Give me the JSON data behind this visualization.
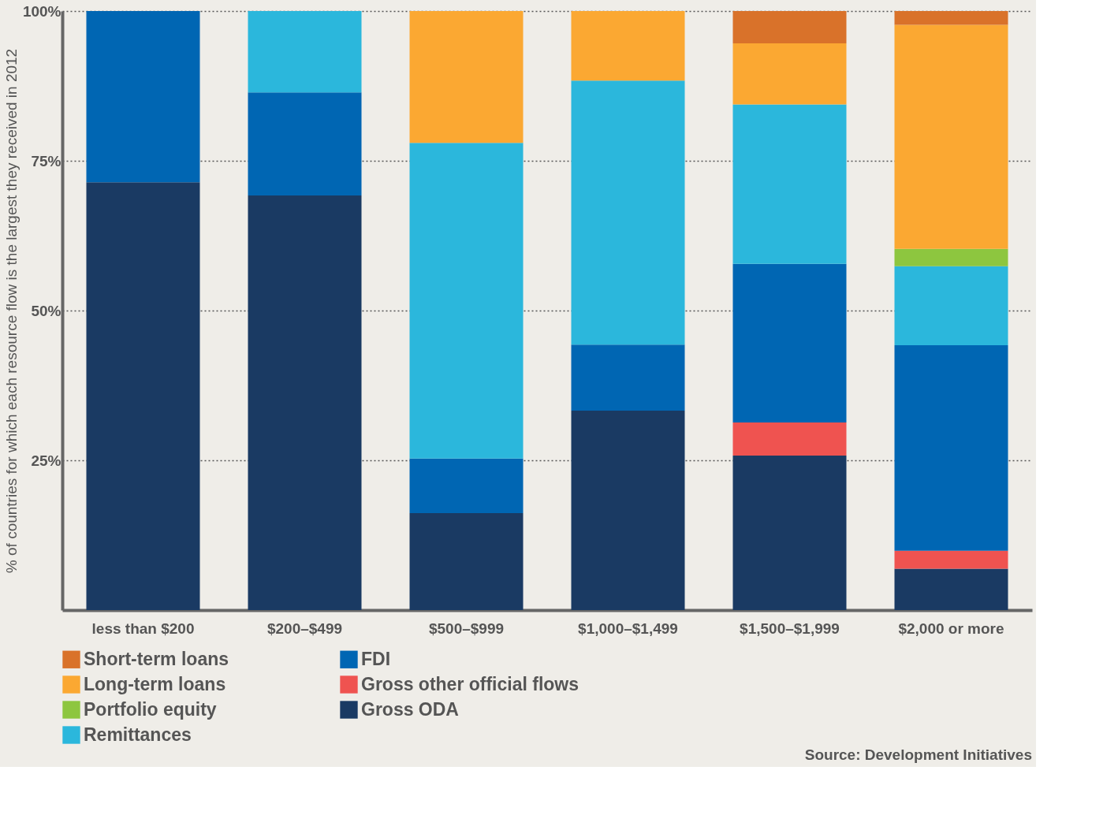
{
  "chart_data": {
    "type": "bar",
    "stacked": true,
    "ylabel": "% of countries for which each resource flow is the largest they received in 2012",
    "categories": [
      "less than $200",
      "$200–$499",
      "$500–$999",
      "$1,000–$1,499",
      "$1,500–$1,999",
      "$2,000 or more"
    ],
    "series": [
      {
        "name": "Gross ODA",
        "color": "#1a3a63",
        "values": [
          71.4,
          69.2,
          16.2,
          33.3,
          25.8,
          6.9
        ]
      },
      {
        "name": "Gross other official flows",
        "color": "#ef5350",
        "values": [
          null,
          null,
          null,
          null,
          5.5,
          3.0
        ]
      },
      {
        "name": "FDI",
        "color": "#0066b3",
        "values": [
          28.6,
          17.2,
          9.1,
          11.0,
          26.5,
          34.3
        ]
      },
      {
        "name": "Remittances",
        "color": "#2bb7dc",
        "values": [
          null,
          13.6,
          52.7,
          44.1,
          26.6,
          13.2
        ]
      },
      {
        "name": "Portfolio equity",
        "color": "#8dc63f",
        "values": [
          null,
          null,
          null,
          null,
          null,
          2.9
        ]
      },
      {
        "name": "Long-term loans",
        "color": "#fba832",
        "values": [
          null,
          null,
          22.0,
          11.6,
          10.2,
          37.4
        ]
      },
      {
        "name": "Short-term loans",
        "color": "#d9722a",
        "values": [
          null,
          null,
          null,
          null,
          5.4,
          2.3
        ]
      }
    ],
    "ylim": [
      0,
      100
    ],
    "yticks": [
      {
        "value": 25,
        "label": "25%"
      },
      {
        "value": 50,
        "label": "50%"
      },
      {
        "value": 75,
        "label": "75%"
      },
      {
        "value": 100,
        "label": "100%"
      }
    ],
    "grid": "y",
    "legend": "bottom left",
    "annotations": [
      "Source: Development Initiatives"
    ]
  }
}
